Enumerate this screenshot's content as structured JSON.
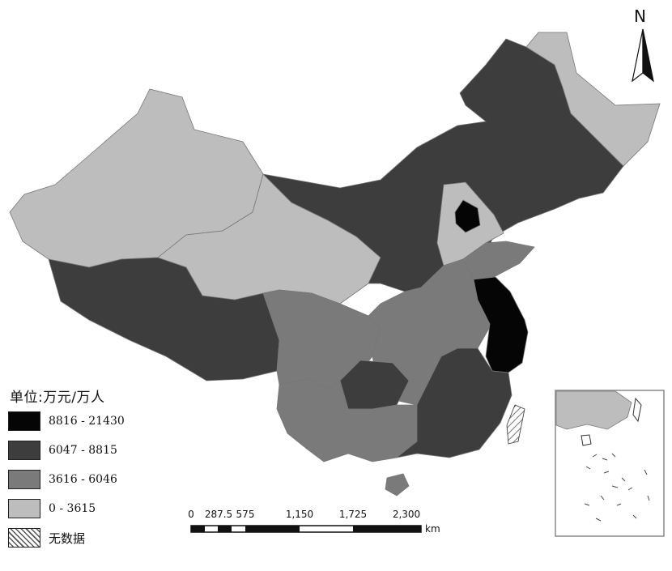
{
  "map": {
    "north_label": "N",
    "legend": {
      "title": "单位:万元/万人",
      "classes": [
        {
          "label": "8816 - 21430",
          "color": "#050505"
        },
        {
          "label": "6047 - 8815",
          "color": "#3d3d3d"
        },
        {
          "label": "3616 - 6046",
          "color": "#7a7a7a"
        },
        {
          "label": "0 - 3615",
          "color": "#bdbdbd"
        },
        {
          "label": "无数据",
          "pattern": "hatch"
        }
      ]
    },
    "scale_bar": {
      "ticks": [
        "0",
        "287.5",
        "575",
        "1,150",
        "1,725",
        "2,300"
      ],
      "unit": "km"
    }
  }
}
